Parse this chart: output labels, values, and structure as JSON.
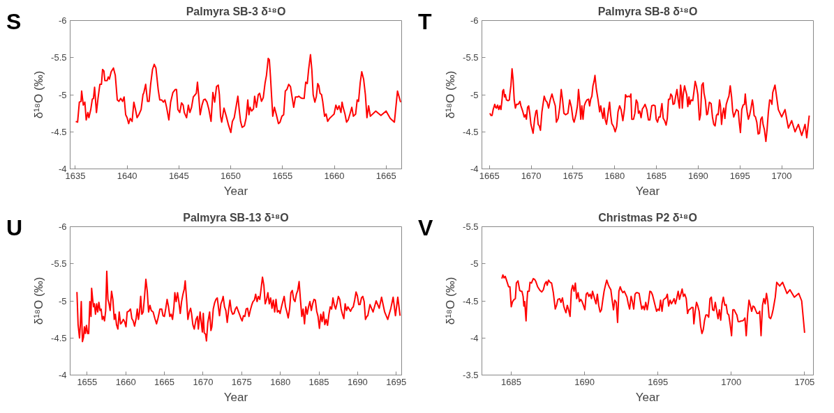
{
  "chart_data": [
    {
      "type": "line",
      "title": "Palmyra SB-3 δ¹⁸O",
      "xlabel": "Year",
      "ylabel": "δ¹⁸O (‰)",
      "annotations": [
        "S"
      ],
      "xlim": [
        1634.5,
        1666.5
      ],
      "ylim": [
        -4,
        -6
      ],
      "xticks": [
        1635,
        1640,
        1645,
        1650,
        1655,
        1660,
        1665
      ],
      "yticks": [
        -6,
        -5.5,
        -5,
        -4.5,
        -4
      ],
      "series": [
        {
          "color": "#ff0000",
          "x": [
            1635.04,
            1635.22,
            1635.39,
            1635.55,
            1635.61,
            1635.77,
            1635.92,
            1636.05,
            1636.21,
            1636.31,
            1636.49,
            1636.64,
            1636.75,
            1636.86,
            1637.04,
            1637.19,
            1637.37,
            1637.52,
            1637.63,
            1637.76,
            1637.85,
            1638.07,
            1638.18,
            1638.29,
            1638.46,
            1638.68,
            1638.86,
            1639.05,
            1639.21,
            1639.38,
            1639.56,
            1639.71,
            1639.86,
            1640.0,
            1640.15,
            1640.3,
            1640.48,
            1640.65,
            1640.81,
            1640.96,
            1641.13,
            1641.35,
            1641.53,
            1641.62,
            1641.79,
            1641.97,
            1642.12,
            1642.27,
            1642.45,
            1642.62,
            1642.78,
            1643.0,
            1643.15,
            1643.33,
            1643.5,
            1643.65,
            1643.81,
            1644.03,
            1644.2,
            1644.42,
            1644.64,
            1644.77,
            1644.9,
            1645.08,
            1645.25,
            1645.41,
            1645.52,
            1645.74,
            1645.91,
            1646.06,
            1646.22,
            1646.39,
            1646.57,
            1646.68,
            1646.79,
            1646.92,
            1647.05,
            1647.23,
            1647.38,
            1647.53,
            1647.71,
            1647.88,
            1648.1,
            1648.28,
            1648.45,
            1648.63,
            1648.8,
            1648.91,
            1649.02,
            1649.13,
            1649.35,
            1649.57,
            1649.79,
            1650.01,
            1650.16,
            1650.34,
            1650.51,
            1650.69,
            1650.82,
            1650.95,
            1651.1,
            1651.32,
            1651.48,
            1651.65,
            1651.76,
            1651.87,
            1652.02,
            1652.2,
            1652.31,
            1652.48,
            1652.66,
            1652.79,
            1652.97,
            1653.14,
            1653.32,
            1653.45,
            1653.62,
            1653.73,
            1653.84,
            1653.95,
            1654.06,
            1654.22,
            1654.39,
            1654.61,
            1654.76,
            1654.94,
            1655.11,
            1655.27,
            1655.42,
            1655.6,
            1655.77,
            1655.92,
            1656.08,
            1656.25,
            1656.47,
            1656.58,
            1656.74,
            1656.91,
            1657.09,
            1657.24,
            1657.39,
            1657.52,
            1657.7,
            1657.83,
            1657.96,
            1658.12,
            1658.27,
            1658.4,
            1658.51,
            1658.62,
            1658.77,
            1658.88,
            1659.06,
            1659.21,
            1659.36,
            1659.54,
            1659.76,
            1659.98,
            1660.15,
            1660.31,
            1660.46,
            1660.64,
            1660.75,
            1660.85,
            1661.03,
            1661.18,
            1661.34,
            1661.51,
            1661.69,
            1661.84,
            1662.06,
            1662.21,
            1662.34,
            1662.5,
            1662.65,
            1662.83,
            1663.0,
            1663.15,
            1663.31,
            1663.48,
            1664.0,
            1664.5,
            1665.0,
            1665.4,
            1665.8,
            1666.1,
            1666.4
          ],
          "values": [
            -4.64,
            -4.63,
            -4.9,
            -4.91,
            -5.05,
            -4.86,
            -4.9,
            -4.66,
            -4.76,
            -4.69,
            -4.8,
            -4.94,
            -4.95,
            -5.1,
            -4.76,
            -4.95,
            -5.14,
            -5.14,
            -5.34,
            -5.32,
            -5.19,
            -5.19,
            -5.24,
            -5.21,
            -5.31,
            -5.36,
            -5.26,
            -4.93,
            -4.91,
            -4.95,
            -4.91,
            -4.97,
            -4.73,
            -4.69,
            -4.61,
            -4.68,
            -4.64,
            -4.9,
            -4.8,
            -4.69,
            -4.73,
            -4.8,
            -5.0,
            -5.03,
            -5.14,
            -4.91,
            -4.91,
            -5.14,
            -5.34,
            -5.41,
            -5.36,
            -5.07,
            -4.93,
            -4.93,
            -4.9,
            -4.93,
            -4.83,
            -4.66,
            -4.9,
            -5.03,
            -5.07,
            -5.07,
            -4.8,
            -4.76,
            -4.89,
            -4.86,
            -4.76,
            -4.69,
            -4.86,
            -4.76,
            -4.83,
            -4.97,
            -5.0,
            -5.02,
            -5.17,
            -4.97,
            -4.73,
            -4.86,
            -4.93,
            -4.94,
            -4.9,
            -4.81,
            -4.64,
            -5.03,
            -4.9,
            -5.11,
            -5.13,
            -5.0,
            -4.71,
            -4.63,
            -4.82,
            -4.71,
            -4.59,
            -4.49,
            -4.64,
            -4.69,
            -4.83,
            -4.98,
            -4.8,
            -4.64,
            -4.56,
            -4.58,
            -4.68,
            -4.93,
            -4.73,
            -4.83,
            -4.78,
            -4.81,
            -4.98,
            -4.83,
            -5.0,
            -5.02,
            -4.91,
            -4.96,
            -5.16,
            -5.26,
            -5.49,
            -5.47,
            -5.24,
            -4.97,
            -4.71,
            -4.83,
            -4.74,
            -4.61,
            -4.63,
            -4.71,
            -4.73,
            -5.05,
            -5.07,
            -5.14,
            -5.11,
            -4.97,
            -4.83,
            -4.97,
            -4.97,
            -4.98,
            -4.96,
            -4.95,
            -4.95,
            -5.17,
            -5.15,
            -5.34,
            -5.54,
            -5.34,
            -5.0,
            -4.9,
            -4.98,
            -5.15,
            -5.12,
            -5.02,
            -5.0,
            -4.91,
            -4.71,
            -4.74,
            -4.64,
            -4.68,
            -4.71,
            -4.74,
            -4.86,
            -4.8,
            -4.85,
            -4.76,
            -4.9,
            -4.83,
            -4.74,
            -4.63,
            -4.66,
            -4.74,
            -4.83,
            -4.71,
            -4.74,
            -4.93,
            -4.91,
            -5.16,
            -5.31,
            -5.21,
            -5.0,
            -4.69,
            -4.85,
            -4.71,
            -4.78,
            -4.72,
            -4.78,
            -4.68,
            -4.63,
            -5.05,
            -4.9
          ]
        }
      ]
    },
    {
      "type": "line",
      "title": "Palmyra SB-8 δ¹⁸O",
      "xlabel": "Year",
      "ylabel": "δ¹⁸O (‰)",
      "annotations": [
        "T"
      ],
      "xlim": [
        1664.1,
        1703.8
      ],
      "ylim": [
        -4,
        -6
      ],
      "xticks": [
        1665,
        1670,
        1675,
        1680,
        1685,
        1690,
        1695,
        1700
      ],
      "yticks": [
        -6,
        -5.5,
        -5,
        -4.5,
        -4
      ],
      "series": [
        {
          "color": "#ff0000",
          "x": [
            1665.05,
            1665.19,
            1665.32,
            1665.45,
            1665.64,
            1665.74,
            1665.85,
            1665.98,
            1666.12,
            1666.25,
            1666.38,
            1666.51,
            1666.59,
            1666.7,
            1666.81,
            1666.91,
            1667.04,
            1667.23,
            1667.39,
            1667.44,
            1667.58,
            1667.71,
            1667.84,
            1667.97,
            1668.11,
            1668.24,
            1668.45,
            1668.66,
            1668.77,
            1668.98,
            1669.17,
            1669.3,
            1669.43,
            1669.57,
            1669.7,
            1669.83,
            1669.97,
            1670.23,
            1670.42,
            1670.58,
            1670.68,
            1670.84,
            1670.97,
            1671.11,
            1671.29,
            1671.56,
            1671.74,
            1671.9,
            1672.09,
            1672.28,
            1672.49,
            1672.7,
            1672.89,
            1673.02,
            1673.23,
            1673.42,
            1673.6,
            1673.76,
            1673.92,
            1674.13,
            1674.4,
            1674.61,
            1674.82,
            1675.01,
            1675.14,
            1675.36,
            1675.54,
            1675.67,
            1675.81,
            1675.94,
            1676.07,
            1676.21,
            1676.36,
            1676.52,
            1676.68,
            1676.87,
            1677.0,
            1677.13,
            1677.27,
            1677.4,
            1677.53,
            1677.64,
            1677.8,
            1678.01,
            1678.2,
            1678.33,
            1678.46,
            1678.6,
            1678.73,
            1678.86,
            1679.02,
            1679.18,
            1679.39,
            1679.52,
            1679.66,
            1679.87,
            1680.06,
            1680.24,
            1680.4,
            1680.59,
            1680.77,
            1680.98,
            1681.19,
            1681.3,
            1681.46,
            1681.65,
            1681.83,
            1681.94,
            1682.05,
            1682.26,
            1682.42,
            1682.58,
            1682.74,
            1682.85,
            1683.0,
            1683.16,
            1683.32,
            1683.45,
            1683.64,
            1683.85,
            1684.04,
            1684.22,
            1684.44,
            1684.65,
            1684.84,
            1684.97,
            1685.13,
            1685.29,
            1685.45,
            1685.55,
            1685.66,
            1685.82,
            1685.98,
            1686.16,
            1686.3,
            1686.45,
            1686.61,
            1686.72,
            1686.88,
            1686.99,
            1687.15,
            1687.3,
            1687.46,
            1687.62,
            1687.76,
            1687.89,
            1688.0,
            1688.1,
            1688.21,
            1688.37,
            1688.47,
            1688.63,
            1688.76,
            1688.9,
            1689.0,
            1689.16,
            1689.35,
            1689.48,
            1689.64,
            1689.8,
            1689.96,
            1690.15,
            1690.28,
            1690.44,
            1690.6,
            1690.7,
            1690.86,
            1691.02,
            1691.13,
            1691.34,
            1691.55,
            1691.71,
            1691.87,
            1692.03,
            1692.19,
            1692.3,
            1692.4,
            1692.56,
            1692.67,
            1692.8,
            1692.93,
            1693.07,
            1693.2,
            1693.36,
            1693.52,
            1693.68,
            1693.84,
            1694.0,
            1694.13,
            1694.26,
            1694.42,
            1694.58,
            1694.8,
            1694.93,
            1695.06,
            1695.22,
            1695.38,
            1695.54,
            1695.64,
            1695.75,
            1695.86,
            1696.01,
            1696.17,
            1696.33,
            1696.49,
            1696.6,
            1696.7,
            1696.86,
            1697.02,
            1697.18,
            1697.34,
            1697.5,
            1697.66,
            1697.77,
            1697.93,
            1698.11,
            1698.25,
            1698.4,
            1698.56,
            1698.72,
            1698.83,
            1698.93,
            1699.2,
            1699.6,
            1700.0,
            1700.4,
            1700.8,
            1701.2,
            1701.6,
            1702.0,
            1702.4,
            1702.8,
            1703.0,
            1703.3
          ],
          "values": [
            -4.75,
            -4.72,
            -4.72,
            -4.8,
            -4.87,
            -4.83,
            -4.82,
            -4.86,
            -4.8,
            -4.85,
            -4.8,
            -4.93,
            -5.05,
            -5.07,
            -4.97,
            -5.0,
            -4.93,
            -4.92,
            -4.93,
            -5.0,
            -5.13,
            -5.35,
            -5.2,
            -4.93,
            -4.82,
            -4.87,
            -4.87,
            -4.91,
            -4.85,
            -4.78,
            -4.7,
            -4.73,
            -4.67,
            -4.83,
            -4.85,
            -4.75,
            -4.6,
            -4.48,
            -4.68,
            -4.78,
            -4.79,
            -4.6,
            -4.58,
            -4.52,
            -4.77,
            -4.98,
            -4.92,
            -4.9,
            -4.82,
            -4.93,
            -5.01,
            -4.92,
            -4.85,
            -4.63,
            -4.68,
            -4.83,
            -5.07,
            -4.93,
            -4.75,
            -4.73,
            -4.75,
            -4.93,
            -4.83,
            -4.67,
            -4.63,
            -4.73,
            -4.85,
            -5.07,
            -4.9,
            -4.67,
            -4.85,
            -4.67,
            -4.85,
            -4.9,
            -4.93,
            -4.94,
            -4.85,
            -4.94,
            -4.98,
            -5.12,
            -5.18,
            -5.26,
            -5.08,
            -4.93,
            -4.77,
            -4.85,
            -4.76,
            -4.68,
            -4.82,
            -4.67,
            -4.6,
            -4.73,
            -4.9,
            -4.73,
            -4.61,
            -4.57,
            -4.5,
            -4.57,
            -4.77,
            -4.85,
            -4.8,
            -4.65,
            -4.82,
            -5.0,
            -4.97,
            -4.98,
            -4.97,
            -5.01,
            -4.67,
            -4.67,
            -4.75,
            -4.93,
            -4.89,
            -4.75,
            -4.78,
            -4.69,
            -4.81,
            -4.83,
            -4.87,
            -4.8,
            -4.66,
            -4.66,
            -4.85,
            -4.86,
            -4.85,
            -4.67,
            -4.63,
            -4.7,
            -4.7,
            -4.8,
            -4.88,
            -4.68,
            -4.65,
            -4.59,
            -4.68,
            -4.94,
            -4.94,
            -5.01,
            -4.98,
            -4.87,
            -4.88,
            -4.98,
            -5.07,
            -4.92,
            -4.82,
            -5.13,
            -5.03,
            -4.82,
            -5.0,
            -5.12,
            -5.07,
            -5.0,
            -4.84,
            -4.97,
            -4.87,
            -4.93,
            -4.92,
            -5.03,
            -5.18,
            -5.11,
            -5.0,
            -4.66,
            -4.73,
            -5.13,
            -5.16,
            -5.02,
            -4.93,
            -4.73,
            -4.74,
            -4.9,
            -4.88,
            -4.7,
            -4.6,
            -4.58,
            -4.72,
            -4.74,
            -4.73,
            -4.93,
            -4.85,
            -4.6,
            -4.75,
            -4.82,
            -4.68,
            -4.87,
            -4.93,
            -4.98,
            -5.12,
            -4.97,
            -4.78,
            -4.7,
            -4.75,
            -4.8,
            -4.78,
            -4.62,
            -4.49,
            -4.8,
            -4.86,
            -4.87,
            -5.01,
            -4.87,
            -4.77,
            -4.67,
            -4.73,
            -4.82,
            -4.93,
            -4.85,
            -4.72,
            -4.7,
            -4.63,
            -4.47,
            -4.48,
            -4.67,
            -4.7,
            -4.6,
            -4.53,
            -4.37,
            -4.53,
            -4.76,
            -4.93,
            -4.92,
            -4.87,
            -5.03,
            -5.13,
            -4.8,
            -4.7,
            -4.8,
            -4.55,
            -4.65,
            -4.5,
            -4.6,
            -4.45,
            -4.6,
            -4.42,
            -4.72
          ]
        }
      ]
    },
    {
      "type": "line",
      "title": "Palmyra SB-13 δ¹⁸O",
      "xlabel": "Year",
      "ylabel": "δ¹⁸O (‰)",
      "annotations": [
        "U"
      ],
      "xlim": [
        1652.8,
        1695.7
      ],
      "ylim": [
        -4,
        -6
      ],
      "xticks": [
        1655,
        1660,
        1665,
        1670,
        1675,
        1680,
        1685,
        1690,
        1695
      ],
      "yticks": [
        -6,
        -5.5,
        -5,
        -4.5,
        -4
      ],
      "series": [
        {
          "color": "#ff0000",
          "x": [
            1653.68,
            1653.83,
            1654.01,
            1654.12,
            1654.24,
            1654.39,
            1654.53,
            1654.65,
            1654.77,
            1654.91,
            1655.06,
            1655.2,
            1655.35,
            1655.5,
            1655.58,
            1655.7,
            1655.82,
            1655.94,
            1656.08,
            1656.23,
            1656.37,
            1656.52,
            1656.67,
            1656.81,
            1656.96,
            1657.11,
            1657.25,
            1657.4,
            1657.54,
            1657.69,
            1657.84,
            1657.98,
            1658.16,
            1658.33,
            1658.51,
            1658.65,
            1658.8,
            1658.98,
            1659.15,
            1659.33,
            1659.5,
            1659.68,
            1659.85,
            1660.03,
            1660.18,
            1660.38,
            1660.61,
            1660.79,
            1660.96,
            1661.14,
            1661.35,
            1661.49,
            1661.64,
            1661.78,
            1661.93,
            1662.08,
            1662.25,
            1662.43,
            1662.6,
            1662.78,
            1662.95,
            1663.13,
            1663.3,
            1663.54,
            1663.77,
            1663.98,
            1664.18,
            1664.42,
            1664.65,
            1664.82,
            1665.0,
            1665.18,
            1665.35,
            1665.53,
            1665.7,
            1665.88,
            1666.05,
            1666.23,
            1666.35,
            1666.52,
            1666.7,
            1666.87,
            1667.05,
            1667.22,
            1667.4,
            1667.57,
            1667.69,
            1667.87,
            1668.04,
            1668.22,
            1668.39,
            1668.51,
            1668.68,
            1668.86,
            1669.09,
            1669.27,
            1669.39,
            1669.62,
            1669.8,
            1669.91,
            1670.03,
            1670.15,
            1670.32,
            1670.44,
            1670.61,
            1670.85,
            1671.02,
            1671.14,
            1671.32,
            1671.49,
            1671.67,
            1671.84,
            1671.96,
            1672.13,
            1672.31,
            1672.49,
            1672.6,
            1672.78,
            1672.95,
            1673.13,
            1673.3,
            1673.48,
            1673.65,
            1673.83,
            1674.01,
            1674.18,
            1674.36,
            1674.53,
            1674.71,
            1674.88,
            1675.06,
            1675.23,
            1675.41,
            1675.58,
            1675.76,
            1675.94,
            1676.11,
            1676.29,
            1676.46,
            1676.64,
            1676.81,
            1676.99,
            1677.16,
            1677.34,
            1677.51,
            1677.69,
            1677.87,
            1678.04,
            1678.22,
            1678.39,
            1678.57,
            1678.74,
            1678.92,
            1679.09,
            1679.27,
            1679.44,
            1679.62,
            1679.8,
            1679.97,
            1680.15,
            1680.32,
            1680.5,
            1680.67,
            1680.85,
            1681.02,
            1681.2,
            1681.37,
            1681.55,
            1681.73,
            1681.9,
            1682.08,
            1682.25,
            1682.43,
            1682.6,
            1682.78,
            1682.95,
            1683.13,
            1683.3,
            1683.48,
            1683.65,
            1683.83,
            1684.01,
            1684.18,
            1684.36,
            1684.53,
            1684.71,
            1684.88,
            1685.06,
            1685.23,
            1685.41,
            1685.58,
            1685.76,
            1685.94,
            1686.11,
            1686.29,
            1686.46,
            1686.64,
            1686.81,
            1686.99,
            1687.16,
            1687.34,
            1687.51,
            1687.69,
            1687.87,
            1688.04,
            1688.22,
            1688.39,
            1688.57,
            1688.74,
            1688.92,
            1689.09,
            1689.27,
            1689.44,
            1689.62,
            1689.8,
            1689.97,
            1690.15,
            1690.32,
            1690.5,
            1690.67,
            1690.85,
            1691.02,
            1691.2,
            1691.32,
            1691.6,
            1692.0,
            1692.4,
            1692.8,
            1693.1,
            1693.5,
            1693.9,
            1694.3,
            1694.6,
            1694.9,
            1695.2,
            1695.5
          ],
          "values": [
            -5.12,
            -4.68,
            -4.5,
            -4.68,
            -4.99,
            -4.45,
            -4.51,
            -4.65,
            -4.56,
            -4.67,
            -4.56,
            -4.56,
            -4.99,
            -4.79,
            -5.17,
            -5.04,
            -4.92,
            -4.96,
            -4.82,
            -4.96,
            -4.85,
            -4.98,
            -4.87,
            -4.89,
            -4.75,
            -4.79,
            -4.73,
            -4.87,
            -5.4,
            -5.02,
            -4.96,
            -4.87,
            -5.13,
            -5.02,
            -4.75,
            -4.82,
            -4.68,
            -4.62,
            -4.85,
            -4.69,
            -4.71,
            -4.75,
            -4.72,
            -4.65,
            -4.85,
            -4.86,
            -4.89,
            -4.76,
            -4.73,
            -4.66,
            -4.77,
            -4.89,
            -4.75,
            -4.85,
            -5.06,
            -4.82,
            -4.85,
            -5.06,
            -5.29,
            -5.13,
            -4.85,
            -4.94,
            -4.87,
            -4.85,
            -4.76,
            -4.69,
            -4.77,
            -4.89,
            -4.89,
            -4.8,
            -4.79,
            -4.9,
            -5.02,
            -4.92,
            -4.79,
            -4.82,
            -4.75,
            -4.92,
            -5.11,
            -4.99,
            -5.11,
            -4.99,
            -4.83,
            -4.99,
            -5.09,
            -5.16,
            -5.27,
            -5.02,
            -4.75,
            -4.85,
            -4.9,
            -4.83,
            -4.68,
            -4.62,
            -4.75,
            -4.79,
            -4.62,
            -4.85,
            -4.68,
            -4.58,
            -4.83,
            -4.57,
            -4.55,
            -4.46,
            -4.7,
            -4.85,
            -4.6,
            -4.65,
            -4.89,
            -4.97,
            -5.02,
            -5.04,
            -4.94,
            -4.8,
            -4.96,
            -5.01,
            -5.06,
            -4.92,
            -4.87,
            -4.71,
            -4.87,
            -5.01,
            -4.87,
            -4.82,
            -4.83,
            -4.89,
            -4.92,
            -4.87,
            -4.82,
            -4.77,
            -4.73,
            -4.8,
            -4.79,
            -4.89,
            -4.9,
            -4.79,
            -4.87,
            -4.94,
            -4.99,
            -5.01,
            -5.09,
            -4.99,
            -5.06,
            -5.02,
            -5.16,
            -5.32,
            -5.21,
            -4.96,
            -5.02,
            -5.11,
            -4.96,
            -5.04,
            -4.9,
            -5.01,
            -4.85,
            -5.02,
            -4.85,
            -4.87,
            -4.83,
            -4.92,
            -4.99,
            -5.06,
            -4.92,
            -4.85,
            -4.77,
            -4.89,
            -5.11,
            -5.14,
            -5.02,
            -4.99,
            -5.09,
            -5.14,
            -5.26,
            -5.02,
            -4.79,
            -4.89,
            -4.69,
            -4.92,
            -4.82,
            -4.92,
            -4.99,
            -4.87,
            -4.96,
            -5.02,
            -5.01,
            -4.86,
            -4.79,
            -4.63,
            -4.82,
            -4.72,
            -4.85,
            -4.68,
            -4.75,
            -4.67,
            -4.82,
            -4.92,
            -4.89,
            -5.04,
            -4.94,
            -4.89,
            -4.97,
            -5.06,
            -5.02,
            -4.89,
            -4.82,
            -4.76,
            -4.96,
            -4.87,
            -4.92,
            -4.89,
            -4.86,
            -4.9,
            -4.92,
            -5.01,
            -5.12,
            -5.07,
            -4.95,
            -4.95,
            -5.04,
            -5.06,
            -4.99,
            -4.75,
            -4.79,
            -4.8,
            -4.95,
            -4.85,
            -5.0,
            -4.9,
            -5.05,
            -4.85,
            -4.75,
            -4.9,
            -5.05,
            -4.8,
            -5.05,
            -4.8
          ]
        }
      ]
    },
    {
      "type": "line",
      "title": "Christmas P2 δ¹⁸O",
      "xlabel": "Year",
      "ylabel": "δ¹⁸O (‰)",
      "annotations": [
        "V"
      ],
      "xlim": [
        1683,
        1705.6
      ],
      "ylim": [
        -3.5,
        -5.5
      ],
      "xticks": [
        1685,
        1690,
        1695,
        1700,
        1705
      ],
      "yticks": [
        -5.5,
        -5,
        -4.5,
        -4,
        -3.5
      ],
      "series": [
        {
          "color": "#ff0000",
          "x": [
            1684.36,
            1684.43,
            1684.51,
            1684.59,
            1684.66,
            1684.82,
            1684.91,
            1685.0,
            1685.09,
            1685.2,
            1685.28,
            1685.35,
            1685.46,
            1685.58,
            1685.66,
            1685.73,
            1685.81,
            1685.86,
            1685.92,
            1686.01,
            1686.07,
            1686.12,
            1686.22,
            1686.28,
            1686.38,
            1686.5,
            1686.59,
            1686.68,
            1686.8,
            1686.96,
            1687.08,
            1687.19,
            1687.29,
            1687.39,
            1687.45,
            1687.54,
            1687.65,
            1687.75,
            1687.87,
            1688.0,
            1688.09,
            1688.18,
            1688.3,
            1688.39,
            1688.49,
            1688.58,
            1688.64,
            1688.73,
            1688.82,
            1688.91,
            1689.01,
            1689.1,
            1689.19,
            1689.28,
            1689.37,
            1689.46,
            1689.56,
            1689.65,
            1689.74,
            1689.83,
            1689.92,
            1690.02,
            1690.11,
            1690.2,
            1690.29,
            1690.38,
            1690.47,
            1690.54,
            1690.6,
            1690.69,
            1690.78,
            1690.87,
            1690.96,
            1691.06,
            1691.15,
            1691.24,
            1691.33,
            1691.42,
            1691.51,
            1691.61,
            1691.7,
            1691.79,
            1691.88,
            1691.97,
            1692.06,
            1692.16,
            1692.25,
            1692.34,
            1692.43,
            1692.52,
            1692.61,
            1692.71,
            1692.8,
            1692.89,
            1692.98,
            1693.07,
            1693.17,
            1693.26,
            1693.35,
            1693.44,
            1693.53,
            1693.62,
            1693.72,
            1693.81,
            1693.9,
            1693.99,
            1694.08,
            1694.17,
            1694.27,
            1694.36,
            1694.45,
            1694.54,
            1694.63,
            1694.72,
            1694.82,
            1694.91,
            1695.0,
            1695.09,
            1695.18,
            1695.28,
            1695.37,
            1695.46,
            1695.55,
            1695.64,
            1695.73,
            1695.83,
            1695.92,
            1696.01,
            1696.1,
            1696.19,
            1696.28,
            1696.38,
            1696.47,
            1696.56,
            1696.65,
            1696.74,
            1696.83,
            1696.93,
            1697.02,
            1697.11,
            1697.2,
            1697.29,
            1697.39,
            1697.45,
            1697.54,
            1697.63,
            1697.72,
            1697.81,
            1697.91,
            1698.0,
            1698.09,
            1698.18,
            1698.27,
            1698.36,
            1698.46,
            1698.55,
            1698.64,
            1698.73,
            1698.82,
            1698.91,
            1699.01,
            1699.1,
            1699.19,
            1699.28,
            1699.37,
            1699.46,
            1699.56,
            1699.65,
            1699.74,
            1699.83,
            1699.92,
            1700.02,
            1700.11,
            1700.2,
            1700.29,
            1700.38,
            1700.47,
            1700.57,
            1700.66,
            1700.75,
            1700.84,
            1700.93,
            1701.02,
            1701.12,
            1701.21,
            1701.3,
            1701.39,
            1701.48,
            1701.57,
            1701.67,
            1701.76,
            1701.85,
            1701.94,
            1702.03,
            1702.13,
            1702.22,
            1702.31,
            1702.4,
            1702.49,
            1702.58,
            1702.68,
            1702.77,
            1702.86,
            1703.0,
            1703.1,
            1703.3,
            1703.5,
            1703.8,
            1704.0,
            1704.3,
            1704.6,
            1704.8,
            1705.0
          ],
          "values": [
            -4.8,
            -4.85,
            -4.81,
            -4.83,
            -4.79,
            -4.69,
            -4.69,
            -4.42,
            -4.49,
            -4.52,
            -4.53,
            -4.74,
            -4.77,
            -4.64,
            -4.63,
            -4.63,
            -4.56,
            -4.43,
            -4.49,
            -4.23,
            -4.49,
            -4.63,
            -4.63,
            -4.75,
            -4.74,
            -4.8,
            -4.79,
            -4.76,
            -4.69,
            -4.64,
            -4.62,
            -4.65,
            -4.73,
            -4.76,
            -4.71,
            -4.78,
            -4.75,
            -4.74,
            -4.61,
            -4.39,
            -4.44,
            -4.52,
            -4.53,
            -4.48,
            -4.54,
            -4.43,
            -4.39,
            -4.34,
            -4.44,
            -4.38,
            -4.29,
            -4.64,
            -4.71,
            -4.63,
            -4.74,
            -4.53,
            -4.61,
            -4.49,
            -4.52,
            -4.49,
            -4.44,
            -4.38,
            -4.59,
            -4.61,
            -4.56,
            -4.59,
            -4.53,
            -4.63,
            -4.59,
            -4.52,
            -4.46,
            -4.59,
            -4.44,
            -4.35,
            -4.38,
            -4.51,
            -4.63,
            -4.71,
            -4.78,
            -4.72,
            -4.68,
            -4.65,
            -4.51,
            -4.38,
            -4.51,
            -4.48,
            -4.21,
            -4.63,
            -4.69,
            -4.64,
            -4.61,
            -4.63,
            -4.59,
            -4.55,
            -4.46,
            -4.39,
            -4.56,
            -4.49,
            -4.39,
            -4.59,
            -4.61,
            -4.61,
            -4.6,
            -4.49,
            -4.39,
            -4.43,
            -4.38,
            -4.48,
            -4.38,
            -4.49,
            -4.63,
            -4.62,
            -4.58,
            -4.51,
            -4.43,
            -4.36,
            -4.39,
            -4.37,
            -4.51,
            -4.36,
            -4.51,
            -4.53,
            -4.54,
            -4.59,
            -4.43,
            -4.51,
            -4.46,
            -4.49,
            -4.53,
            -4.46,
            -4.53,
            -4.63,
            -4.52,
            -4.59,
            -4.66,
            -4.56,
            -4.59,
            -4.53,
            -4.33,
            -4.38,
            -4.39,
            -4.41,
            -4.41,
            -4.19,
            -4.36,
            -4.48,
            -4.43,
            -4.36,
            -4.16,
            -4.06,
            -4.11,
            -4.24,
            -4.31,
            -4.31,
            -4.28,
            -4.53,
            -4.55,
            -4.38,
            -4.37,
            -4.48,
            -4.36,
            -4.26,
            -4.38,
            -4.24,
            -4.46,
            -4.55,
            -4.44,
            -4.45,
            -4.33,
            -4.31,
            -4.19,
            -4.03,
            -4.38,
            -4.38,
            -4.34,
            -4.31,
            -4.22,
            -4.22,
            -4.23,
            -4.23,
            -4.24,
            -4.27,
            -4.03,
            -4.33,
            -4.51,
            -4.44,
            -4.36,
            -4.43,
            -4.42,
            -4.37,
            -4.33,
            -4.33,
            -4.36,
            -4.03,
            -4.44,
            -4.53,
            -4.46,
            -4.6,
            -4.49,
            -4.28,
            -4.26,
            -4.31,
            -4.39,
            -4.55,
            -4.75,
            -4.7,
            -4.75,
            -4.6,
            -4.65,
            -4.55,
            -4.6,
            -4.5,
            -4.07
          ]
        }
      ]
    }
  ]
}
